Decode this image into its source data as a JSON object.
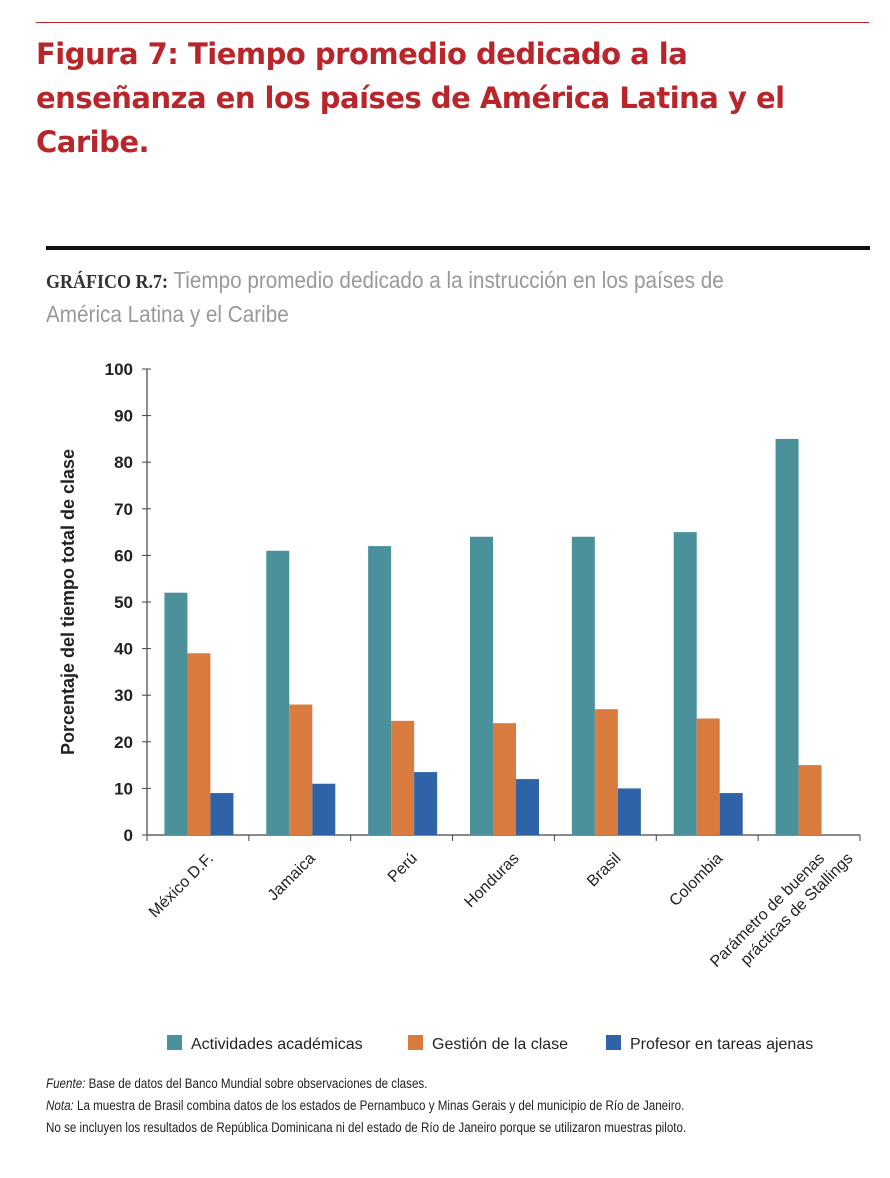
{
  "figure_title": "Figura 7: Tiempo promedio dedicado a la enseñanza en los países de América Latina y el Caribe.",
  "chart_code": "GRÁFICO R.7:",
  "chart_title": "Tiempo promedio dedicado a la instrucción en los países de América Latina y el Caribe",
  "chart_data": {
    "type": "bar",
    "title": "Tiempo promedio dedicado a la instrucción en los países de América Latina y el Caribe",
    "ylabel": "Porcentaje del tiempo total de clase",
    "xlabel": "",
    "ylim": [
      0,
      100
    ],
    "yticks": [
      0,
      10,
      20,
      30,
      40,
      50,
      60,
      70,
      80,
      90,
      100
    ],
    "grid": false,
    "legend_position": "bottom",
    "categories": [
      "México D.F.",
      "Jamaica",
      "Perú",
      "Honduras",
      "Brasil",
      "Colombia",
      "Parámetro de buenas prácticas de Stallings"
    ],
    "category_lines": [
      [
        "México D.F."
      ],
      [
        "Jamaica"
      ],
      [
        "Perú"
      ],
      [
        "Honduras"
      ],
      [
        "Brasil"
      ],
      [
        "Colombia"
      ],
      [
        "Parámetro de buenas",
        "prácticas de Stallings"
      ]
    ],
    "series": [
      {
        "name": "Actividades académicas",
        "color": "#4a919b",
        "values": [
          52,
          61,
          62,
          64,
          64,
          65,
          85
        ]
      },
      {
        "name": "Gestión de la clase",
        "color": "#d97a3f",
        "values": [
          39,
          28,
          24.5,
          24,
          27,
          25,
          15
        ]
      },
      {
        "name": "Profesor en tareas ajenas",
        "color": "#2f63a8",
        "values": [
          9,
          11,
          13.5,
          12,
          10,
          9,
          null
        ]
      }
    ]
  },
  "notes": {
    "source_label": "Fuente:",
    "source_text": " Base de datos del Banco Mundial sobre observaciones de clases.",
    "note_label": "Nota:",
    "note_text": " La muestra de Brasil combina datos de los estados de Pernambuco y Minas Gerais y del municipio de Río de Janeiro.",
    "note_text2": "No se incluyen los resultados de República Dominicana ni del estado de Río de Janeiro porque se utilizaron muestras piloto."
  },
  "colors": {
    "title_red": "#b8262b"
  }
}
